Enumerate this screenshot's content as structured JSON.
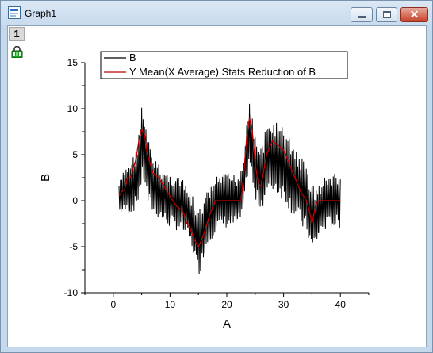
{
  "window": {
    "title": "Graph1"
  },
  "layer": {
    "number": "1"
  },
  "colors": {
    "series_b": "#000000",
    "series_mean": "#c00000"
  },
  "chart_data": {
    "type": "line",
    "xlabel": "A",
    "ylabel": "B",
    "xlim": [
      -5,
      45
    ],
    "ylim": [
      -10,
      15
    ],
    "xticks": [
      0,
      10,
      20,
      30,
      40
    ],
    "xtick_labels": [
      "0",
      "10",
      "20",
      "30",
      "40"
    ],
    "yticks": [
      -10,
      -5,
      0,
      5,
      10,
      15
    ],
    "ytick_labels": [
      "-10",
      "-5",
      "0",
      "5",
      "10",
      "15"
    ],
    "grid": false,
    "legend_position": "top-left",
    "series": [
      {
        "name": "B",
        "color": "#000000",
        "style": "noisy-oscillation",
        "envelope": {
          "x": [
            1,
            2,
            3,
            4,
            4.5,
            5,
            5.5,
            6,
            7,
            8,
            9,
            10,
            11,
            12,
            13,
            14,
            14.5,
            15,
            15.5,
            16,
            17,
            18,
            19,
            20,
            21,
            22,
            23,
            23.5,
            24,
            24.5,
            25,
            26,
            27,
            28,
            29,
            30,
            31,
            32,
            33,
            34,
            35,
            36,
            37,
            38,
            39,
            40
          ],
          "high": [
            2,
            3.5,
            4.5,
            5.5,
            8,
            10.5,
            9,
            7,
            5,
            4,
            3.5,
            3,
            3,
            2.5,
            1.5,
            0.5,
            -0.5,
            -1,
            -0.5,
            0.5,
            1.5,
            2.5,
            3,
            3,
            3,
            3,
            5,
            9,
            11.8,
            10,
            7,
            6,
            8,
            9,
            8.5,
            8,
            7,
            6,
            5,
            4,
            2,
            1.5,
            2.5,
            3,
            3,
            3
          ],
          "low": [
            -1.5,
            -1.5,
            -1.5,
            -1,
            0,
            1.5,
            2,
            -0.5,
            -1.5,
            -2,
            -2.5,
            -3,
            -3.2,
            -3.5,
            -4,
            -5.5,
            -7,
            -8.2,
            -7.5,
            -6,
            -4.5,
            -3.5,
            -3,
            -3,
            -3,
            -3,
            -1.5,
            2,
            4,
            1.5,
            -0.5,
            -1,
            0,
            1,
            0.5,
            0,
            -1,
            -2,
            -3,
            -3.5,
            -5.8,
            -4.5,
            -3.5,
            -3,
            -3,
            -3
          ]
        }
      },
      {
        "name": "Y Mean(X Average) Stats Reduction of B",
        "color": "#c00000",
        "x": [
          1,
          1.5,
          2,
          2.5,
          3,
          3.5,
          4,
          4.5,
          5,
          5.5,
          6,
          7,
          8,
          9,
          10,
          11,
          12,
          12.5,
          13,
          13.5,
          14,
          14.5,
          15,
          15.5,
          16,
          17,
          18,
          19,
          20,
          21,
          22,
          22.5,
          23,
          23.5,
          24,
          24.5,
          25,
          25.5,
          26,
          27,
          28,
          29,
          30,
          31,
          32,
          33,
          34,
          34.5,
          35,
          35.5,
          36,
          37,
          38,
          39,
          40
        ],
        "y": [
          0.5,
          1,
          1.2,
          2.5,
          2.5,
          3.5,
          4.5,
          6.5,
          7.8,
          7.2,
          5,
          3,
          2.5,
          1.5,
          0.5,
          -0.5,
          -1,
          -1.5,
          -2.5,
          -3,
          -3.8,
          -4.5,
          -5,
          -4.3,
          -3.5,
          -1.5,
          0,
          0,
          0,
          0,
          0,
          0,
          3,
          7,
          9,
          7.5,
          4,
          2,
          1.5,
          5,
          6.5,
          6,
          5.5,
          4,
          2.5,
          1,
          0,
          -1,
          -2.5,
          -1,
          0,
          0,
          0,
          0,
          0
        ]
      }
    ]
  }
}
